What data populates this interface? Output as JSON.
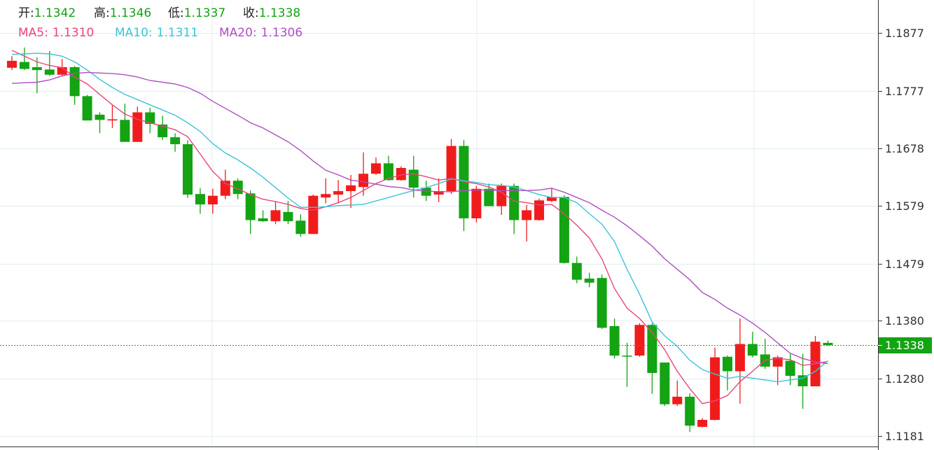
{
  "chart_data": {
    "type": "candlestick",
    "ohlc_labels": [
      "开:",
      "高:",
      "低:",
      "收:"
    ],
    "up_color": "#f01c1c",
    "down_color": "#13a313",
    "open": [
      1.1817,
      1.1827,
      1.1818,
      1.1814,
      1.1805,
      1.1818,
      1.1768,
      1.1736,
      1.1726,
      1.1727,
      1.1689,
      1.174,
      1.1719,
      1.1697,
      1.1685,
      1.1599,
      1.1581,
      1.1596,
      1.1622,
      1.16,
      1.1557,
      1.1552,
      1.1568,
      1.1553,
      1.153,
      1.1593,
      1.1598,
      1.1604,
      1.1611,
      1.1634,
      1.1652,
      1.1623,
      1.1641,
      1.161,
      1.1598,
      1.1604,
      1.1682,
      1.1557,
      1.1608,
      1.1578,
      1.1613,
      1.1554,
      1.1554,
      1.1587,
      1.1594,
      1.148,
      1.1453,
      1.1454,
      1.1371,
      1.132,
      1.132,
      1.1373,
      1.1308,
      1.1236,
      1.1249,
      1.1197,
      1.1209,
      1.1318,
      1.1293,
      1.134,
      1.1322,
      1.1301,
      1.1311,
      1.1286,
      1.1267,
      1.1342
    ],
    "high": [
      1.1837,
      1.1852,
      1.1835,
      1.1846,
      1.1832,
      1.182,
      1.177,
      1.174,
      1.1753,
      1.1755,
      1.175,
      1.1748,
      1.1734,
      1.1704,
      1.1692,
      1.1609,
      1.1608,
      1.1641,
      1.1626,
      1.1605,
      1.1571,
      1.1586,
      1.1587,
      1.1564,
      1.1598,
      1.1626,
      1.1623,
      1.1632,
      1.1671,
      1.1662,
      1.1665,
      1.1647,
      1.1665,
      1.1622,
      1.1626,
      1.1694,
      1.1692,
      1.1613,
      1.1617,
      1.1617,
      1.1617,
      1.158,
      1.1591,
      1.161,
      1.1597,
      1.1491,
      1.1463,
      1.146,
      1.1384,
      1.1342,
      1.1376,
      1.1376,
      1.1308,
      1.1277,
      1.1255,
      1.1212,
      1.1334,
      1.132,
      1.1384,
      1.1361,
      1.1349,
      1.132,
      1.1323,
      1.1323,
      1.1354,
      1.1346
    ],
    "low": [
      1.1813,
      1.1813,
      1.1773,
      1.1803,
      1.1803,
      1.1753,
      1.1726,
      1.1704,
      1.1713,
      1.1689,
      1.1689,
      1.1704,
      1.1692,
      1.1672,
      1.1592,
      1.1565,
      1.1565,
      1.159,
      1.159,
      1.153,
      1.1551,
      1.1547,
      1.1547,
      1.1525,
      1.153,
      1.1583,
      1.1583,
      1.1575,
      1.1596,
      1.1632,
      1.1622,
      1.1622,
      1.1593,
      1.1587,
      1.1585,
      1.1599,
      1.1535,
      1.155,
      1.1578,
      1.1563,
      1.153,
      1.1517,
      1.1553,
      1.1585,
      1.1479,
      1.1445,
      1.1438,
      1.1366,
      1.1315,
      1.1266,
      1.1318,
      1.1254,
      1.1233,
      1.1233,
      1.1188,
      1.1196,
      1.1208,
      1.126,
      1.1237,
      1.1317,
      1.1297,
      1.1269,
      1.1269,
      1.1228,
      1.1267,
      1.1337
    ],
    "close": [
      1.1829,
      1.1815,
      1.1813,
      1.1805,
      1.1818,
      1.1768,
      1.1726,
      1.1727,
      1.1728,
      1.1689,
      1.174,
      1.172,
      1.1697,
      1.1685,
      1.1598,
      1.1581,
      1.1596,
      1.1622,
      1.1599,
      1.1554,
      1.1552,
      1.1571,
      1.1552,
      1.153,
      1.1596,
      1.1599,
      1.1604,
      1.1614,
      1.1634,
      1.1652,
      1.1623,
      1.1644,
      1.161,
      1.1596,
      1.1604,
      1.1682,
      1.1557,
      1.1608,
      1.1578,
      1.1613,
      1.1554,
      1.1571,
      1.1588,
      1.1594,
      1.148,
      1.1451,
      1.1446,
      1.1368,
      1.132,
      1.1319,
      1.1373,
      1.129,
      1.1236,
      1.1249,
      1.1199,
      1.1209,
      1.1317,
      1.1293,
      1.134,
      1.132,
      1.1301,
      1.1317,
      1.1285,
      1.1267,
      1.1344,
      1.1338
    ],
    "series": [
      {
        "name": "MA5:",
        "color": "#e8467c",
        "legend_value": "1.1310",
        "values": [
          1.1847,
          1.1837,
          1.1827,
          1.1821,
          1.1817,
          1.1801,
          1.1789,
          1.1771,
          1.1753,
          1.1737,
          1.1728,
          1.1722,
          1.1716,
          1.171,
          1.1698,
          1.1668,
          1.1638,
          1.1617,
          1.1608,
          1.1598,
          1.159,
          1.1586,
          1.1581,
          1.1574,
          1.1571,
          1.1577,
          1.1584,
          1.1593,
          1.1605,
          1.1617,
          1.1626,
          1.1632,
          1.1634,
          1.1629,
          1.1623,
          1.1626,
          1.162,
          1.1617,
          1.1611,
          1.1602,
          1.1587,
          1.1584,
          1.158,
          1.1581,
          1.1565,
          1.1545,
          1.1523,
          1.1487,
          1.1436,
          1.1402,
          1.1384,
          1.136,
          1.133,
          1.1293,
          1.1263,
          1.1237,
          1.1242,
          1.1251,
          1.1275,
          1.1293,
          1.1312,
          1.1315,
          1.1313,
          1.1303,
          1.1306,
          1.131
        ]
      },
      {
        "name": "MA10:",
        "color": "#3cc4d8",
        "legend_value": "1.1311",
        "values": [
          1.184,
          1.1841,
          1.1842,
          1.1841,
          1.1837,
          1.1827,
          1.1813,
          1.1797,
          1.1783,
          1.1771,
          1.1762,
          1.1753,
          1.1744,
          1.1735,
          1.1722,
          1.1707,
          1.1686,
          1.167,
          1.1658,
          1.1644,
          1.1628,
          1.161,
          1.1592,
          1.1576,
          1.1576,
          1.1577,
          1.1579,
          1.158,
          1.1581,
          1.1587,
          1.1593,
          1.1599,
          1.1605,
          1.161,
          1.1617,
          1.1625,
          1.1622,
          1.1619,
          1.1615,
          1.1614,
          1.1611,
          1.1605,
          1.1598,
          1.1593,
          1.1593,
          1.1584,
          1.1565,
          1.1547,
          1.1517,
          1.1469,
          1.1426,
          1.1378,
          1.1354,
          1.1336,
          1.1312,
          1.1296,
          1.1288,
          1.1281,
          1.1284,
          1.1281,
          1.1278,
          1.1275,
          1.1278,
          1.1281,
          1.1293,
          1.1311
        ]
      },
      {
        "name": "MA20:",
        "color": "#b04ec4",
        "legend_value": "1.1306",
        "values": [
          1.179,
          1.1791,
          1.1792,
          1.1796,
          1.1803,
          1.1807,
          1.1809,
          1.1808,
          1.1807,
          1.1805,
          1.1801,
          1.1795,
          1.1792,
          1.1789,
          1.1783,
          1.1773,
          1.1759,
          1.1747,
          1.1735,
          1.1722,
          1.1713,
          1.1701,
          1.1689,
          1.1674,
          1.1656,
          1.164,
          1.1632,
          1.1623,
          1.162,
          1.1616,
          1.1612,
          1.161,
          1.1606,
          1.1604,
          1.1603,
          1.1603,
          1.1605,
          1.1606,
          1.1606,
          1.1605,
          1.1605,
          1.1605,
          1.1606,
          1.1609,
          1.1602,
          1.1593,
          1.1584,
          1.1571,
          1.1559,
          1.1544,
          1.1527,
          1.1509,
          1.1487,
          1.1469,
          1.1451,
          1.1429,
          1.1417,
          1.1402,
          1.139,
          1.1376,
          1.136,
          1.1342,
          1.1324,
          1.1315,
          1.1309,
          1.1306
        ]
      }
    ],
    "ylim": [
      1.1157,
      1.1934
    ],
    "yticks": [
      1.1877,
      1.1777,
      1.1678,
      1.1579,
      1.1479,
      {
        "value": 1.138,
        "label": "1.1380"
      },
      {
        "value": 1.128,
        "label": "1.1280"
      },
      1.1181
    ],
    "grid": true
  }
}
